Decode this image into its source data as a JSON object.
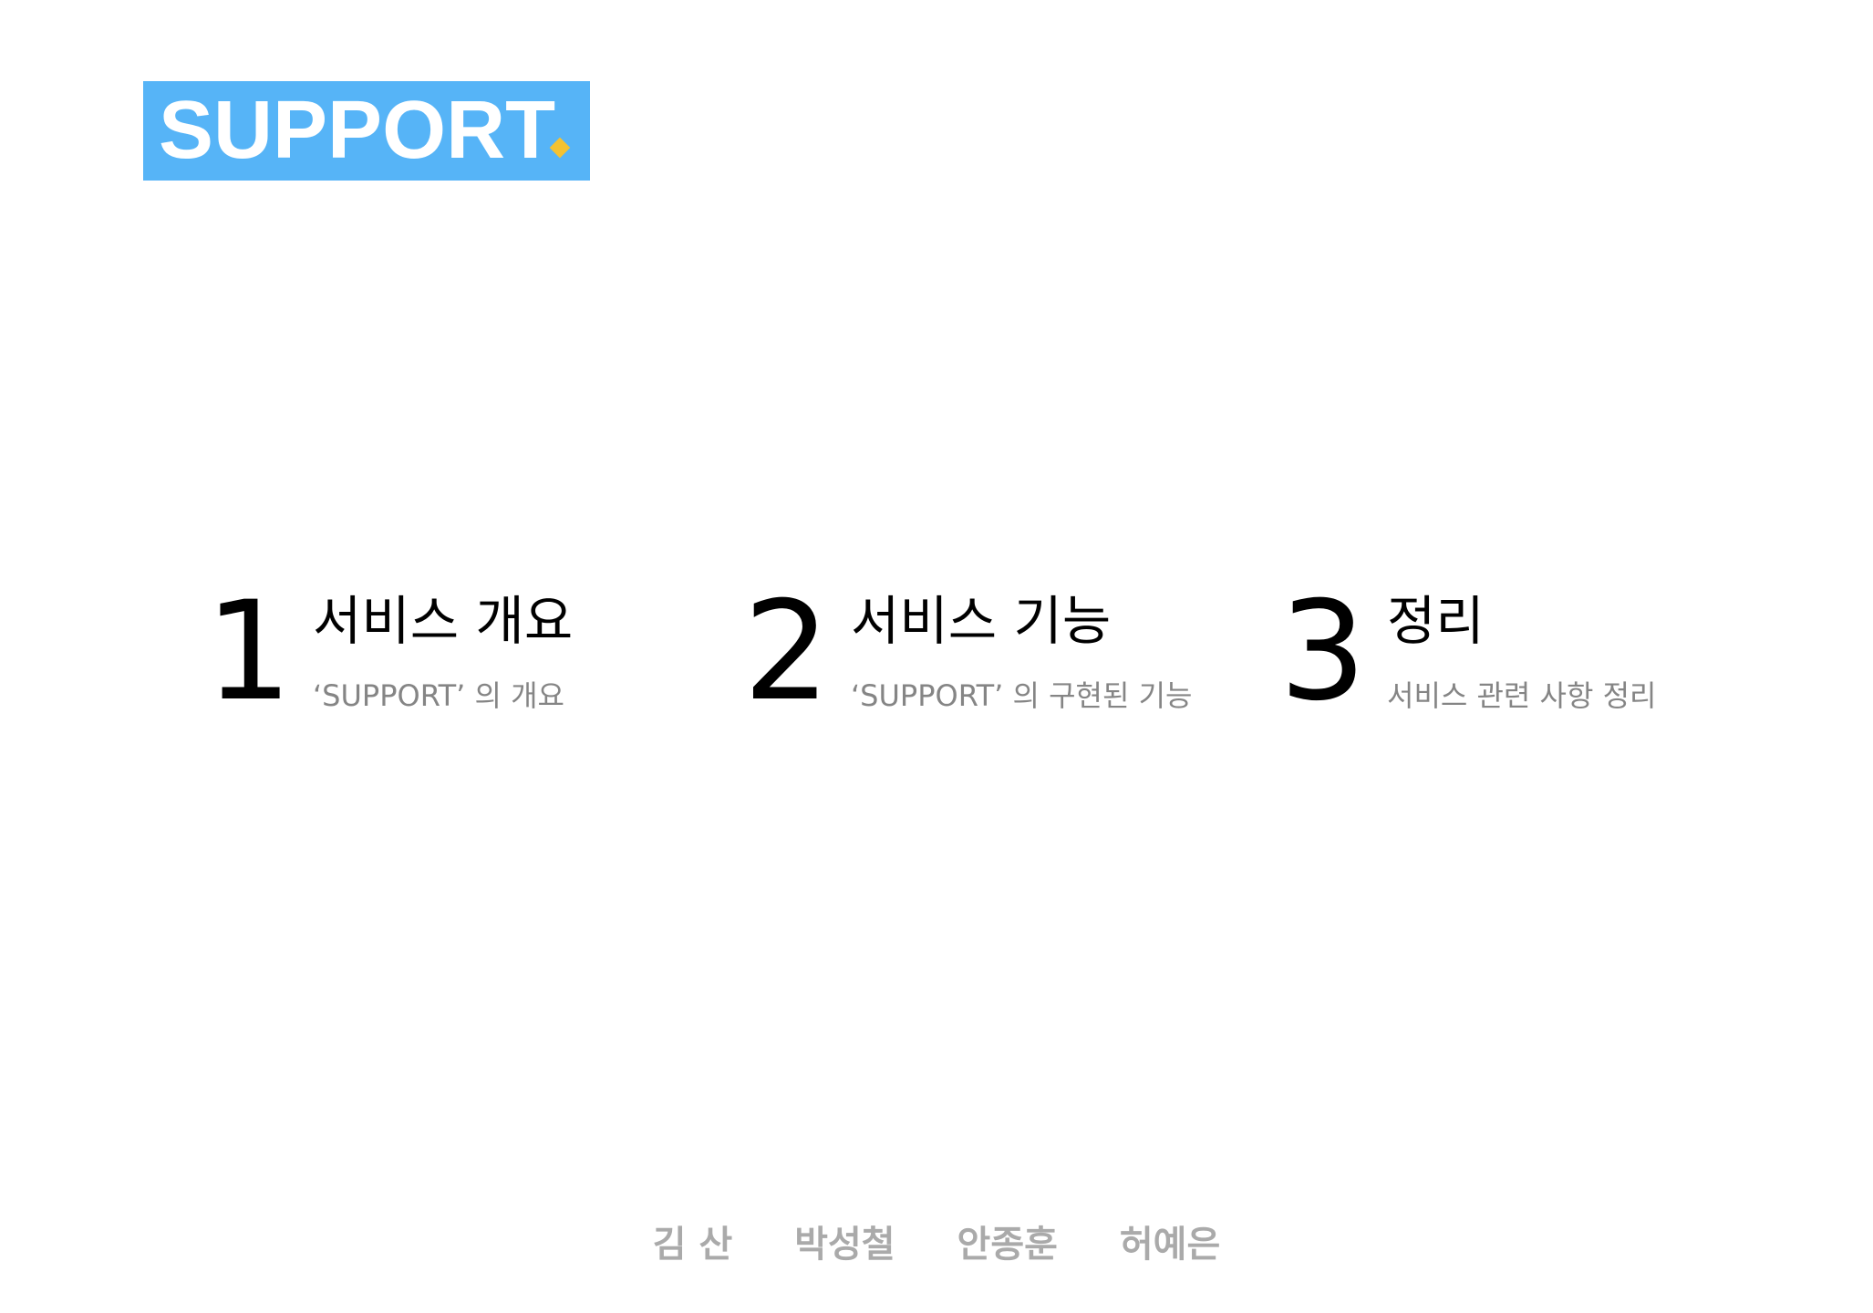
{
  "logo": {
    "text": "SUPPORT",
    "background_color": "#56b4f7",
    "dot_color": "#f4c232"
  },
  "sections": [
    {
      "number": "1",
      "title": "서비스 개요",
      "subtitle": "‘SUPPORT’ 의 개요"
    },
    {
      "number": "2",
      "title": "서비스 기능",
      "subtitle": "‘SUPPORT’ 의 구현된 기능"
    },
    {
      "number": "3",
      "title": "정리",
      "subtitle": "서비스 관련 사항 정리"
    }
  ],
  "members": [
    "김 산",
    "박성철",
    "안종훈",
    "허예은"
  ]
}
